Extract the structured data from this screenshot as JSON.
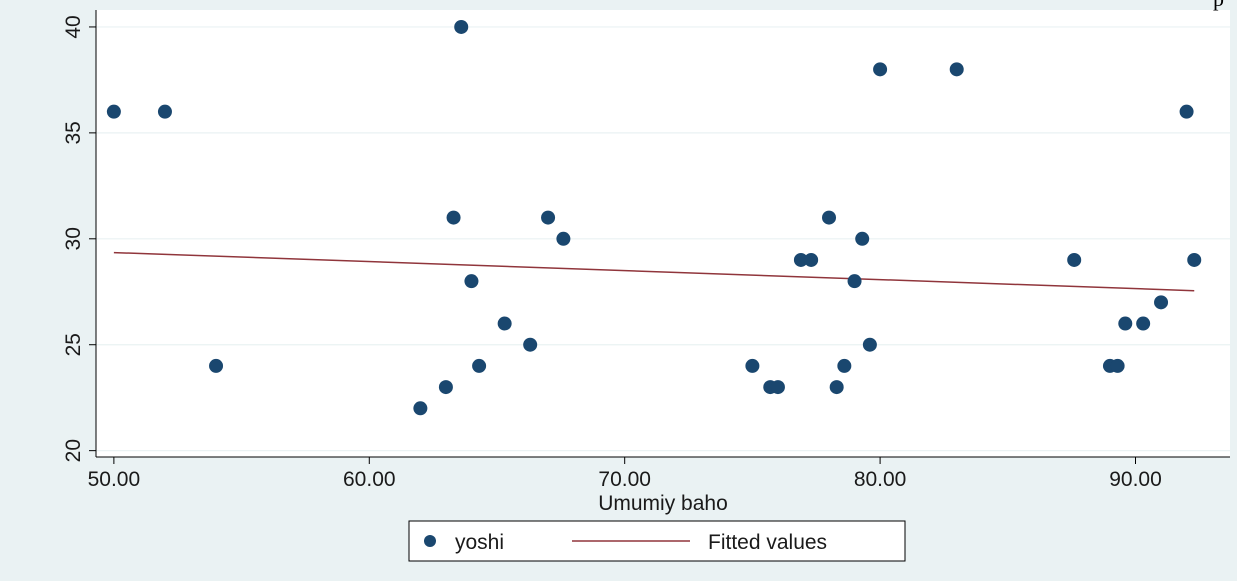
{
  "corner_text": "p",
  "colors": {
    "outer_background": "#eaf2f3",
    "plot_background": "#ffffff",
    "marker": "#1a476f",
    "fit_line": "#90353b",
    "grid": "#eaf2f3"
  },
  "chart_data": {
    "type": "scatter",
    "title": "",
    "xlabel": "Umumiy baho",
    "ylabel": "",
    "xlim": [
      49.3,
      93.7
    ],
    "ylim": [
      19.7,
      40.8
    ],
    "x_ticks": [
      50,
      60,
      70,
      80,
      90
    ],
    "x_tick_labels": [
      "50.00",
      "60.00",
      "70.00",
      "80.00",
      "90.00"
    ],
    "y_ticks": [
      20,
      25,
      30,
      35,
      40
    ],
    "y_tick_labels": [
      "20",
      "25",
      "30",
      "35",
      "40"
    ],
    "grid": "horizontal",
    "legend_position": "bottom",
    "series": [
      {
        "name": "yoshi",
        "kind": "scatter",
        "points": [
          [
            50.0,
            36
          ],
          [
            52.0,
            36
          ],
          [
            54.0,
            24
          ],
          [
            62.0,
            22
          ],
          [
            63.0,
            23
          ],
          [
            63.3,
            31
          ],
          [
            63.6,
            40
          ],
          [
            64.0,
            28
          ],
          [
            64.3,
            24
          ],
          [
            65.3,
            26
          ],
          [
            66.3,
            25
          ],
          [
            67.0,
            31
          ],
          [
            67.6,
            30
          ],
          [
            75.0,
            24
          ],
          [
            75.7,
            23
          ],
          [
            76.0,
            23
          ],
          [
            76.9,
            29
          ],
          [
            77.3,
            29
          ],
          [
            78.0,
            31
          ],
          [
            78.3,
            23
          ],
          [
            78.6,
            24
          ],
          [
            79.0,
            28
          ],
          [
            79.3,
            30
          ],
          [
            79.6,
            25
          ],
          [
            80.0,
            38
          ],
          [
            83.0,
            38
          ],
          [
            87.6,
            29
          ],
          [
            89.0,
            24
          ],
          [
            89.3,
            24
          ],
          [
            89.6,
            26
          ],
          [
            90.3,
            26
          ],
          [
            91.0,
            27
          ],
          [
            92.0,
            36
          ],
          [
            92.3,
            29
          ]
        ]
      },
      {
        "name": "Fitted values",
        "kind": "line",
        "points": [
          [
            50.0,
            29.35
          ],
          [
            92.3,
            27.55
          ]
        ]
      }
    ]
  }
}
